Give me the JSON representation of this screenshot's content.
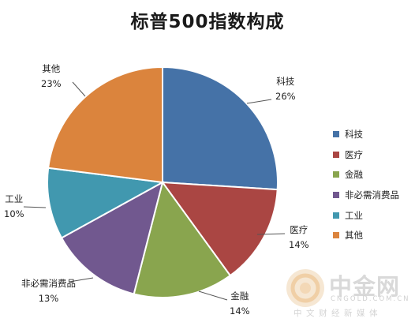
{
  "chart_data": {
    "type": "pie",
    "title": "标普500指数构成",
    "categories": [
      "科技",
      "医疗",
      "金融",
      "非必需消费品",
      "工业",
      "其他"
    ],
    "values": [
      26,
      14,
      14,
      13,
      10,
      23
    ],
    "value_labels": [
      "26%",
      "14%",
      "14%",
      "13%",
      "10%",
      "23%"
    ],
    "colors": [
      "#4572A7",
      "#AA4643",
      "#89A54E",
      "#71588F",
      "#4198AF",
      "#DB843D"
    ],
    "start_angle": "12 o'clock",
    "direction": "clockwise",
    "legend_position": "right"
  },
  "watermark": {
    "name": "中金网",
    "domain": "CNGOLD.COM.CN",
    "tagline": "中文财经新媒体"
  }
}
